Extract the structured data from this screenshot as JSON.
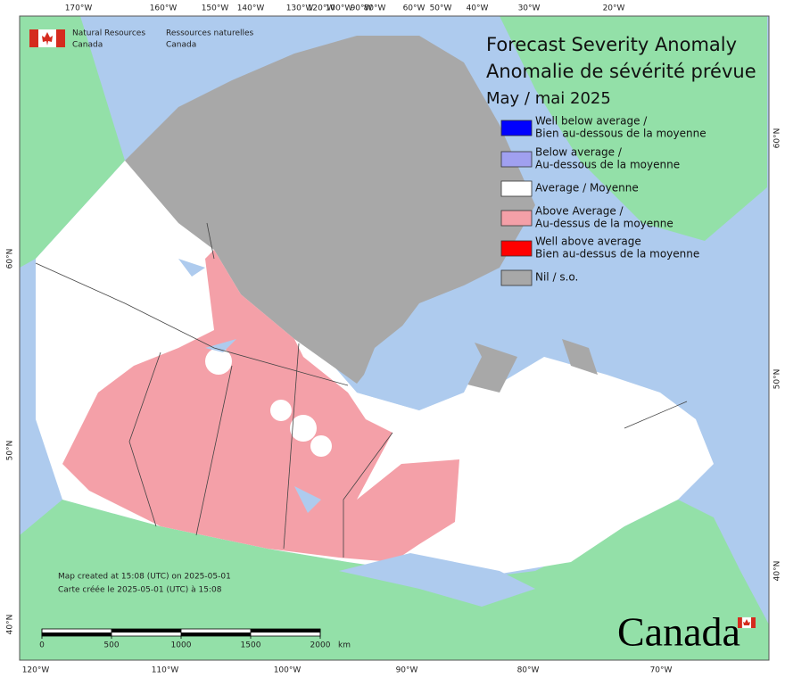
{
  "agency": {
    "en": [
      "Natural Resources",
      "Canada"
    ],
    "fr": [
      "Ressources naturelles",
      "Canada"
    ]
  },
  "title": [
    "Forecast Severity Anomaly",
    "Anomalie de sévérité prévue"
  ],
  "subtitle": "May / mai 2025",
  "legend": [
    {
      "label": [
        "Well below average /",
        "Bien au-dessous de la moyenne"
      ],
      "color": "#0000ff"
    },
    {
      "label": [
        "Below average /",
        "Au-dessous de la moyenne"
      ],
      "color": "#a0a0f0"
    },
    {
      "label": [
        "Average / Moyenne"
      ],
      "color": "#ffffff"
    },
    {
      "label": [
        "Above Average /",
        "Au-dessus de la moyenne"
      ],
      "color": "#f4a0a8"
    },
    {
      "label": [
        "Well above average",
        "Bien au-dessus de la moyenne"
      ],
      "color": "#ff0000"
    },
    {
      "label": [
        "Nil / s.o."
      ],
      "color": "#a8a8a8"
    }
  ],
  "graticule": {
    "top": [
      "170°W",
      "160°W",
      "150°W",
      "140°W",
      "130°W",
      "120°W",
      "100°W",
      "90°W",
      "80°W",
      "60°W",
      "50°W",
      "40°W",
      "30°W",
      "20°W"
    ],
    "bottom": [
      "120°W",
      "110°W",
      "100°W",
      "90°W",
      "80°W",
      "70°W"
    ],
    "left": [
      "60°N",
      "50°N",
      "40°N"
    ],
    "right": [
      "60°N",
      "50°N",
      "40°N"
    ]
  },
  "credit": [
    "Map created at 15:08 (UTC) on 2025-05-01",
    "Carte créée le 2025-05-01 (UTC) à 15:08"
  ],
  "scale_bar": {
    "ticks": [
      0,
      500,
      1000,
      1500,
      2000
    ],
    "unit": "km"
  },
  "wordmark": "Canada"
}
